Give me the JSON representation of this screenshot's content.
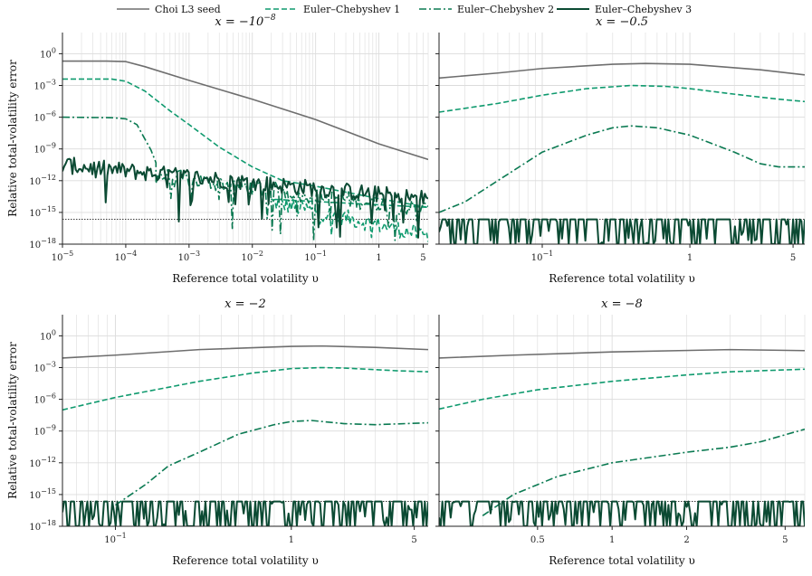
{
  "colors": {
    "Choi L3 seed": "#6e6e6e",
    "Euler–Chebyshev 1": "#0f9a6e",
    "Euler–Chebyshev 2": "#0b7a52",
    "Euler–Chebyshev 3": "#0b4a33",
    "reference_line": "#222222",
    "grid": "#dcdcdc"
  },
  "legend": {
    "placement": "top-center",
    "entries": [
      {
        "name": "Choi L3 seed",
        "style": "solid"
      },
      {
        "name": "Euler–Chebyshev 1",
        "style": "dashed"
      },
      {
        "name": "Euler–Chebyshev 2",
        "style": "dashdot"
      },
      {
        "name": "Euler–Chebyshev 3",
        "style": "solid"
      }
    ]
  },
  "chart_data": [
    {
      "type": "line",
      "title_prefix": "x = −10",
      "title_sup": "−8",
      "xlabel": "Reference total volatility υ",
      "ylabel": "Relative total-volatility error",
      "xscale": "log",
      "yscale": "log",
      "xlim": [
        1e-05,
        6
      ],
      "ylim": [
        1e-18,
        100.0
      ],
      "xticks": [
        {
          "v": 1e-05,
          "b": "10",
          "s": "−5"
        },
        {
          "v": 0.0001,
          "b": "10",
          "s": "−4"
        },
        {
          "v": 0.001,
          "b": "10",
          "s": "−3"
        },
        {
          "v": 0.01,
          "b": "10",
          "s": "−2"
        },
        {
          "v": 0.1,
          "b": "10",
          "s": "−1"
        },
        {
          "v": 1,
          "b": "1",
          "s": ""
        },
        {
          "v": 5,
          "b": "5",
          "s": ""
        }
      ],
      "yticks": [
        {
          "v": 1,
          "b": "10",
          "s": "0"
        },
        {
          "v": 0.001,
          "b": "10",
          "s": "−3"
        },
        {
          "v": 1e-06,
          "b": "10",
          "s": "−6"
        },
        {
          "v": 1e-09,
          "b": "10",
          "s": "−9"
        },
        {
          "v": 1e-12,
          "b": "10",
          "s": "−12"
        },
        {
          "v": 1e-15,
          "b": "10",
          "s": "−15"
        },
        {
          "v": 1e-18,
          "b": "10",
          "s": "−18"
        }
      ],
      "ref_line": 2.2e-16,
      "grid": true,
      "series": [
        {
          "name": "Choi L3 seed",
          "style": "solid",
          "points": [
            [
              1e-05,
              0.2
            ],
            [
              5e-05,
              0.2
            ],
            [
              0.0001,
              0.18
            ],
            [
              0.0002,
              0.06
            ],
            [
              0.001,
              0.003
            ],
            [
              0.01,
              5e-05
            ],
            [
              0.1,
              6e-07
            ],
            [
              1,
              3e-09
            ],
            [
              6,
              1e-10
            ]
          ]
        },
        {
          "name": "Euler–Chebyshev 1",
          "style": "dashed",
          "points": [
            [
              1e-05,
              0.004
            ],
            [
              6e-05,
              0.004
            ],
            [
              0.0001,
              0.0025
            ],
            [
              0.0002,
              0.0003
            ],
            [
              0.0005,
              4e-06
            ],
            [
              0.001,
              2e-07
            ],
            [
              0.003,
              1.5e-09
            ],
            [
              0.01,
              2e-11
            ],
            [
              0.03,
              1e-12
            ],
            [
              0.1,
              3e-13
            ],
            [
              1,
              2e-14
            ],
            [
              6,
              3e-15
            ]
          ],
          "noise_from": 0.02,
          "noise_level": 1e-14
        },
        {
          "name": "Euler–Chebyshev 2",
          "style": "dashdot",
          "points": [
            [
              1e-05,
              1e-06
            ],
            [
              6e-05,
              9e-07
            ],
            [
              0.0001,
              7e-07
            ],
            [
              0.00015,
              2e-07
            ],
            [
              0.00025,
              8e-10
            ],
            [
              0.0003,
              5e-11
            ]
          ],
          "noise_from": 0.0003,
          "noise_level": 3e-12
        },
        {
          "name": "Euler–Chebyshev 3",
          "style": "solid",
          "points": [],
          "noise_from": 1e-05,
          "noise_level": 3e-11
        }
      ]
    },
    {
      "type": "line",
      "title_prefix": "x = −0.5",
      "title_sup": "",
      "xlabel": "Reference total volatility υ",
      "ylabel": "",
      "xscale": "log",
      "yscale": "log",
      "xlim": [
        0.02,
        6
      ],
      "ylim": [
        1e-18,
        100.0
      ],
      "xticks": [
        {
          "v": 0.1,
          "b": "10",
          "s": "−1"
        },
        {
          "v": 1,
          "b": "1",
          "s": ""
        },
        {
          "v": 5,
          "b": "5",
          "s": ""
        }
      ],
      "yticks": [],
      "ref_line": 2.2e-16,
      "grid": true,
      "series": [
        {
          "name": "Choi L3 seed",
          "style": "solid",
          "points": [
            [
              0.02,
              0.005
            ],
            [
              0.05,
              0.015
            ],
            [
              0.1,
              0.04
            ],
            [
              0.3,
              0.1
            ],
            [
              0.5,
              0.12
            ],
            [
              1,
              0.1
            ],
            [
              3,
              0.03
            ],
            [
              6,
              0.01
            ]
          ]
        },
        {
          "name": "Euler–Chebyshev 1",
          "style": "dashed",
          "points": [
            [
              0.02,
              3e-06
            ],
            [
              0.05,
              2e-05
            ],
            [
              0.1,
              0.00012
            ],
            [
              0.2,
              0.0005
            ],
            [
              0.4,
              0.001
            ],
            [
              0.7,
              0.0008
            ],
            [
              1,
              0.0005
            ],
            [
              2,
              0.00015
            ],
            [
              4,
              5e-05
            ],
            [
              6,
              3e-05
            ]
          ]
        },
        {
          "name": "Euler–Chebyshev 2",
          "style": "dashdot",
          "points": [
            [
              0.02,
              1e-15
            ],
            [
              0.03,
              1e-14
            ],
            [
              0.05,
              1e-12
            ],
            [
              0.1,
              5e-10
            ],
            [
              0.2,
              2e-08
            ],
            [
              0.3,
              1e-07
            ],
            [
              0.4,
              1.5e-07
            ],
            [
              0.6,
              1e-07
            ],
            [
              1,
              2e-08
            ],
            [
              2,
              5e-10
            ],
            [
              3,
              4e-11
            ],
            [
              4,
              2e-11
            ],
            [
              6,
              2e-11
            ]
          ]
        },
        {
          "name": "Euler–Chebyshev 3",
          "style": "solid",
          "points": [],
          "noise_from": 0.02,
          "noise_level": 2.2e-16
        }
      ]
    },
    {
      "type": "line",
      "title_prefix": "x = −2",
      "title_sup": "",
      "xlabel": "Reference total volatility υ",
      "ylabel": "Relative total-volatility error",
      "xscale": "log",
      "yscale": "log",
      "xlim": [
        0.05,
        6
      ],
      "ylim": [
        1e-18,
        100.0
      ],
      "xticks": [
        {
          "v": 0.1,
          "b": "10",
          "s": "−1"
        },
        {
          "v": 1,
          "b": "1",
          "s": ""
        },
        {
          "v": 5,
          "b": "5",
          "s": ""
        }
      ],
      "yticks": [
        {
          "v": 1,
          "b": "10",
          "s": "0"
        },
        {
          "v": 0.001,
          "b": "10",
          "s": "−3"
        },
        {
          "v": 1e-06,
          "b": "10",
          "s": "−6"
        },
        {
          "v": 1e-09,
          "b": "10",
          "s": "−9"
        },
        {
          "v": 1e-12,
          "b": "10",
          "s": "−12"
        },
        {
          "v": 1e-15,
          "b": "10",
          "s": "−15"
        },
        {
          "v": 1e-18,
          "b": "10",
          "s": "−18"
        }
      ],
      "ref_line": 2.2e-16,
      "grid": true,
      "series": [
        {
          "name": "Choi L3 seed",
          "style": "solid",
          "points": [
            [
              0.05,
              0.008
            ],
            [
              0.1,
              0.015
            ],
            [
              0.3,
              0.05
            ],
            [
              1,
              0.1
            ],
            [
              1.5,
              0.11
            ],
            [
              3,
              0.08
            ],
            [
              6,
              0.05
            ]
          ]
        },
        {
          "name": "Euler–Chebyshev 1",
          "style": "dashed",
          "points": [
            [
              0.05,
              1e-07
            ],
            [
              0.1,
              1.5e-06
            ],
            [
              0.3,
              5e-05
            ],
            [
              0.6,
              0.0003
            ],
            [
              1,
              0.0008
            ],
            [
              1.5,
              0.001
            ],
            [
              2,
              0.0009
            ],
            [
              4,
              0.0005
            ],
            [
              6,
              0.0004
            ]
          ]
        },
        {
          "name": "Euler–Chebyshev 2",
          "style": "dashdot",
          "points": [
            [
              0.1,
              1e-16
            ],
            [
              0.15,
              1e-14
            ],
            [
              0.2,
              5e-13
            ],
            [
              0.3,
              1e-11
            ],
            [
              0.5,
              5e-10
            ],
            [
              0.8,
              4e-09
            ],
            [
              1,
              8e-09
            ],
            [
              1.3,
              1e-08
            ],
            [
              2,
              5e-09
            ],
            [
              3,
              4e-09
            ],
            [
              6,
              6e-09
            ]
          ]
        },
        {
          "name": "Euler–Chebyshev 3",
          "style": "solid",
          "points": [],
          "noise_from": 0.05,
          "noise_level": 2.2e-16
        }
      ]
    },
    {
      "type": "line",
      "title_prefix": "x = −8",
      "title_sup": "",
      "xlabel": "Reference total volatility υ",
      "ylabel": "",
      "xscale": "log",
      "yscale": "log",
      "xlim": [
        0.2,
        6
      ],
      "ylim": [
        1e-18,
        100.0
      ],
      "xticks": [
        {
          "v": 0.5,
          "b": "0.5",
          "s": ""
        },
        {
          "v": 1,
          "b": "1",
          "s": ""
        },
        {
          "v": 2,
          "b": "2",
          "s": ""
        },
        {
          "v": 5,
          "b": "5",
          "s": ""
        }
      ],
      "yticks": [],
      "ref_line": 2.2e-16,
      "grid": true,
      "series": [
        {
          "name": "Choi L3 seed",
          "style": "solid",
          "points": [
            [
              0.2,
              0.008
            ],
            [
              0.4,
              0.015
            ],
            [
              1,
              0.03
            ],
            [
              3,
              0.05
            ],
            [
              6,
              0.04
            ]
          ]
        },
        {
          "name": "Euler–Chebyshev 1",
          "style": "dashed",
          "points": [
            [
              0.2,
              1.2e-07
            ],
            [
              0.3,
              1e-06
            ],
            [
              0.5,
              8e-06
            ],
            [
              1,
              5e-05
            ],
            [
              2,
              0.0002
            ],
            [
              3,
              0.0004
            ],
            [
              6,
              0.0007
            ]
          ]
        },
        {
          "name": "Euler–Chebyshev 2",
          "style": "dashdot",
          "points": [
            [
              0.3,
              1e-17
            ],
            [
              0.4,
              1e-15
            ],
            [
              0.6,
              5e-14
            ],
            [
              1,
              1e-12
            ],
            [
              2,
              1e-11
            ],
            [
              3,
              3e-11
            ],
            [
              4,
              1e-10
            ],
            [
              6,
              1.5e-09
            ]
          ]
        },
        {
          "name": "Euler–Chebyshev 3",
          "style": "solid",
          "points": [],
          "noise_from": 0.2,
          "noise_level": 2.2e-16
        }
      ]
    }
  ]
}
